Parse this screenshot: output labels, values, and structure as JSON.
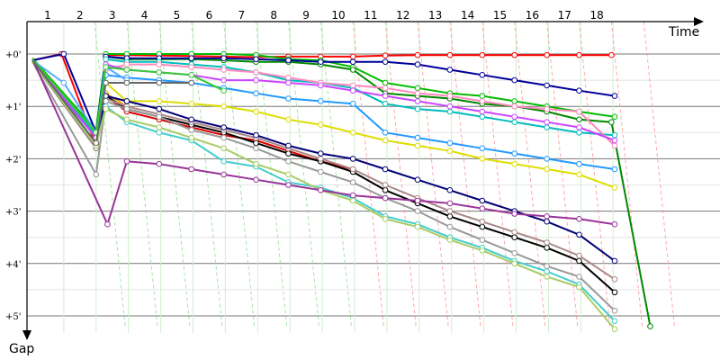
{
  "chart_data": {
    "type": "line",
    "xlabel": "Time",
    "ylabel": "Gap",
    "x_ticks": [
      "1",
      "2",
      "3",
      "4",
      "5",
      "6",
      "7",
      "8",
      "9",
      "10",
      "11",
      "12",
      "13",
      "14",
      "15",
      "16",
      "17",
      "18"
    ],
    "y_ticks": [
      "+0'",
      "+1'",
      "+2'",
      "+3'",
      "+4'",
      "+5'"
    ],
    "ylim": [
      0,
      5
    ],
    "grid": true,
    "series": [
      {
        "color": "#ff0000",
        "x": [
          0.03,
          0.93,
          2.0,
          2.3,
          2.95,
          3.95,
          4.95,
          5.95,
          6.95,
          7.95,
          8.95,
          9.95,
          10.95,
          11.95,
          12.95,
          13.95,
          14.95,
          15.95,
          16.95,
          17.95
        ],
        "y": [
          0.12,
          0.0,
          1.75,
          0.02,
          0.02,
          0.03,
          0.04,
          0.05,
          0.06,
          0.05,
          0.05,
          0.05,
          0.03,
          0.02,
          0.02,
          0.02,
          0.02,
          0.02,
          0.02,
          0.02
        ]
      },
      {
        "color": "#00bb00",
        "x": [
          0.03,
          2.0,
          2.3,
          2.95,
          3.95,
          4.95,
          5.95,
          6.95,
          7.95,
          8.95,
          9.95,
          10.95,
          11.95,
          12.95,
          13.95,
          14.95,
          15.95,
          16.95,
          18.05
        ],
        "y": [
          0.08,
          1.45,
          0.0,
          0.0,
          0.0,
          0.0,
          0.0,
          0.02,
          0.1,
          0.12,
          0.25,
          0.55,
          0.65,
          0.75,
          0.8,
          0.9,
          1.0,
          1.1,
          1.2
        ]
      },
      {
        "color": "#008800",
        "x": [
          0.03,
          2.0,
          2.3,
          2.95,
          3.95,
          4.95,
          5.95,
          6.95,
          7.95,
          8.95,
          9.95,
          10.95,
          11.95,
          12.95,
          13.95,
          14.95,
          15.95,
          16.95,
          17.95,
          19.15
        ],
        "y": [
          0.1,
          1.5,
          0.05,
          0.1,
          0.1,
          0.1,
          0.12,
          0.15,
          0.15,
          0.2,
          0.3,
          0.75,
          0.8,
          0.85,
          0.95,
          1.0,
          1.1,
          1.25,
          1.3,
          5.2
        ]
      },
      {
        "color": "#000099",
        "x": [
          0.03,
          1.0,
          2.0,
          2.3,
          2.95,
          3.95,
          4.95,
          5.95,
          6.95,
          7.95,
          8.95,
          9.95,
          10.95,
          11.95,
          12.95,
          13.95,
          14.95,
          15.95,
          16.95,
          18.05
        ],
        "y": [
          0.12,
          0.0,
          1.5,
          0.05,
          0.08,
          0.08,
          0.08,
          0.08,
          0.1,
          0.12,
          0.15,
          0.15,
          0.15,
          0.2,
          0.3,
          0.4,
          0.5,
          0.6,
          0.7,
          0.8
        ]
      },
      {
        "color": "#00bbbb",
        "x": [
          0.03,
          2.0,
          2.3,
          2.95,
          3.95,
          4.95,
          5.95,
          6.95,
          7.95,
          8.95,
          9.95,
          10.95,
          11.95,
          12.95,
          13.95,
          14.95,
          15.95,
          16.95,
          18.05
        ],
        "y": [
          0.15,
          1.55,
          0.1,
          0.15,
          0.15,
          0.2,
          0.25,
          0.35,
          0.5,
          0.55,
          0.65,
          0.95,
          1.05,
          1.1,
          1.2,
          1.3,
          1.4,
          1.5,
          1.55
        ]
      },
      {
        "color": "#ff88bb",
        "x": [
          0.03,
          2.0,
          2.3,
          2.95,
          3.95,
          4.95,
          5.95,
          6.95,
          7.95,
          8.95,
          9.95,
          10.95,
          11.95,
          12.95,
          13.95,
          14.95,
          15.95,
          16.95,
          18.05
        ],
        "y": [
          0.15,
          1.6,
          0.3,
          0.2,
          0.2,
          0.25,
          0.3,
          0.35,
          0.45,
          0.55,
          0.6,
          0.65,
          0.75,
          0.8,
          0.9,
          1.0,
          1.05,
          1.1,
          1.75
        ]
      },
      {
        "color": "#2299ff",
        "x": [
          0.03,
          2.0,
          2.3,
          2.95,
          3.95,
          4.95,
          5.95,
          6.95,
          7.95,
          8.95,
          9.95,
          10.95,
          11.95,
          12.95,
          13.95,
          14.95,
          15.95,
          16.95,
          18.05
        ],
        "y": [
          0.15,
          1.6,
          0.4,
          0.45,
          0.5,
          0.55,
          0.65,
          0.75,
          0.85,
          0.9,
          0.95,
          1.5,
          1.6,
          1.7,
          1.8,
          1.9,
          2.0,
          2.1,
          2.2
        ]
      },
      {
        "color": "#cc44ff",
        "x": [
          0.03,
          2.0,
          2.3,
          2.95,
          3.95,
          4.95,
          5.95,
          6.95,
          7.95,
          8.95,
          9.95,
          10.95,
          11.95,
          12.95,
          13.95,
          14.95,
          15.95,
          16.95,
          18.05
        ],
        "y": [
          0.12,
          1.6,
          0.2,
          0.3,
          0.35,
          0.4,
          0.5,
          0.5,
          0.55,
          0.6,
          0.7,
          0.8,
          0.9,
          1.0,
          1.1,
          1.2,
          1.3,
          1.4,
          1.65
        ]
      },
      {
        "color": "#dddd00",
        "x": [
          0.03,
          2.0,
          2.3,
          2.95,
          3.95,
          4.95,
          5.95,
          6.95,
          7.95,
          8.95,
          9.95,
          10.95,
          11.95,
          12.95,
          13.95,
          14.95,
          15.95,
          16.95,
          18.05
        ],
        "y": [
          0.15,
          1.7,
          0.55,
          0.9,
          0.9,
          0.95,
          1.0,
          1.1,
          1.25,
          1.35,
          1.5,
          1.65,
          1.75,
          1.85,
          2.0,
          2.1,
          2.2,
          2.3,
          2.55
        ]
      },
      {
        "color": "#ffaa00",
        "x": [
          0.03,
          2.0,
          2.3,
          2.95
        ],
        "y": [
          0.15,
          1.75,
          0.75,
          1.0
        ]
      },
      {
        "color": "#dd0000",
        "x": [
          0.03,
          2.0,
          2.3,
          2.95,
          3.95,
          4.95,
          5.95,
          6.95,
          7.95,
          8.95,
          9.95
        ],
        "y": [
          0.15,
          1.7,
          0.8,
          1.1,
          1.25,
          1.4,
          1.55,
          1.65,
          1.85,
          2.05,
          2.2
        ]
      },
      {
        "color": "#000000",
        "x": [
          0.03,
          2.0,
          2.3,
          2.95,
          3.95,
          4.95,
          5.95,
          6.95,
          7.95,
          8.95,
          9.95,
          10.95,
          11.95,
          12.95,
          13.95,
          14.95,
          15.95,
          16.95,
          18.05
        ],
        "y": [
          0.15,
          1.8,
          0.8,
          1.05,
          1.2,
          1.35,
          1.5,
          1.7,
          1.9,
          2.05,
          2.25,
          2.6,
          2.85,
          3.1,
          3.3,
          3.5,
          3.7,
          3.95,
          4.55
        ]
      },
      {
        "color": "#aa8888",
        "x": [
          0.03,
          2.0,
          2.3,
          2.95,
          3.95,
          4.95,
          5.95,
          6.95,
          7.95,
          8.95,
          9.95,
          10.95,
          11.95,
          12.95,
          13.95,
          14.95,
          15.95,
          16.95,
          18.05
        ],
        "y": [
          0.15,
          1.8,
          0.85,
          1.0,
          1.15,
          1.3,
          1.45,
          1.6,
          1.8,
          2.0,
          2.2,
          2.5,
          2.75,
          3.0,
          3.2,
          3.4,
          3.6,
          3.85,
          4.3
        ]
      },
      {
        "color": "#000077",
        "x": [
          0.03,
          2.0,
          2.3,
          2.95,
          3.95,
          4.95,
          5.95,
          6.95,
          7.95,
          8.95,
          9.95,
          10.95,
          11.95,
          12.95,
          13.95,
          14.95,
          15.95,
          16.95,
          18.05
        ],
        "y": [
          0.15,
          1.75,
          0.8,
          0.9,
          1.05,
          1.25,
          1.4,
          1.55,
          1.75,
          1.9,
          2.0,
          2.2,
          2.4,
          2.6,
          2.8,
          3.0,
          3.2,
          3.45,
          3.95
        ]
      },
      {
        "color": "#999999",
        "x": [
          0.03,
          2.0,
          2.3,
          2.95,
          3.95,
          4.95,
          5.95,
          6.95,
          7.95,
          8.95,
          9.95,
          10.95,
          11.95,
          12.95,
          13.95,
          14.95,
          15.95,
          16.95,
          18.05
        ],
        "y": [
          0.15,
          2.3,
          0.9,
          1.05,
          1.2,
          1.45,
          1.6,
          1.8,
          2.05,
          2.25,
          2.45,
          2.75,
          3.0,
          3.3,
          3.55,
          3.8,
          4.05,
          4.25,
          4.9
        ]
      },
      {
        "color": "#44cccc",
        "x": [
          0.03,
          2.0,
          2.3,
          2.95,
          3.95,
          4.95,
          5.95,
          6.95,
          7.95,
          8.95,
          9.95,
          10.95,
          11.95,
          12.95,
          13.95,
          14.95,
          15.95,
          16.95,
          18.05
        ],
        "y": [
          0.15,
          1.75,
          1.0,
          1.3,
          1.5,
          1.65,
          2.05,
          2.15,
          2.45,
          2.55,
          2.75,
          3.1,
          3.25,
          3.5,
          3.7,
          3.95,
          4.15,
          4.4,
          5.1
        ]
      },
      {
        "color": "#aacc66",
        "x": [
          0.03,
          2.0,
          2.3,
          2.95,
          3.95,
          4.95,
          5.95,
          6.95,
          7.95,
          8.95,
          9.95,
          10.95,
          11.95,
          12.95,
          13.95,
          14.95,
          15.95,
          16.95,
          18.05
        ],
        "y": [
          0.15,
          1.75,
          1.05,
          1.25,
          1.4,
          1.6,
          1.8,
          2.1,
          2.3,
          2.6,
          2.8,
          3.15,
          3.3,
          3.55,
          3.75,
          4.0,
          4.25,
          4.45,
          5.25
        ]
      },
      {
        "color": "#993399",
        "x": [
          0.03,
          2.35,
          2.95,
          3.95,
          4.95,
          5.95,
          6.95,
          7.95,
          8.95,
          9.95,
          10.95,
          11.95,
          12.95,
          13.95,
          14.95,
          15.95,
          16.95,
          18.05
        ],
        "y": [
          0.1,
          3.25,
          2.05,
          2.1,
          2.2,
          2.3,
          2.4,
          2.5,
          2.6,
          2.7,
          2.75,
          2.8,
          2.85,
          2.95,
          3.05,
          3.1,
          3.15,
          3.25
        ]
      },
      {
        "color": "#55aaff",
        "x": [
          0.03,
          1.0,
          2.0,
          2.3,
          2.95
        ],
        "y": [
          0.12,
          0.55,
          1.5,
          0.25,
          0.5
        ]
      },
      {
        "color": "#33cc33",
        "x": [
          0.03,
          2.0,
          2.3,
          2.95,
          3.95,
          4.95,
          5.95
        ],
        "y": [
          0.1,
          1.5,
          0.25,
          0.3,
          0.35,
          0.4,
          0.7
        ]
      },
      {
        "color": "#666666",
        "x": [
          0.03,
          2.0,
          2.3,
          2.95,
          3.95,
          4.95
        ],
        "y": [
          0.12,
          1.7,
          0.55,
          0.55,
          0.55,
          0.55
        ]
      }
    ]
  }
}
